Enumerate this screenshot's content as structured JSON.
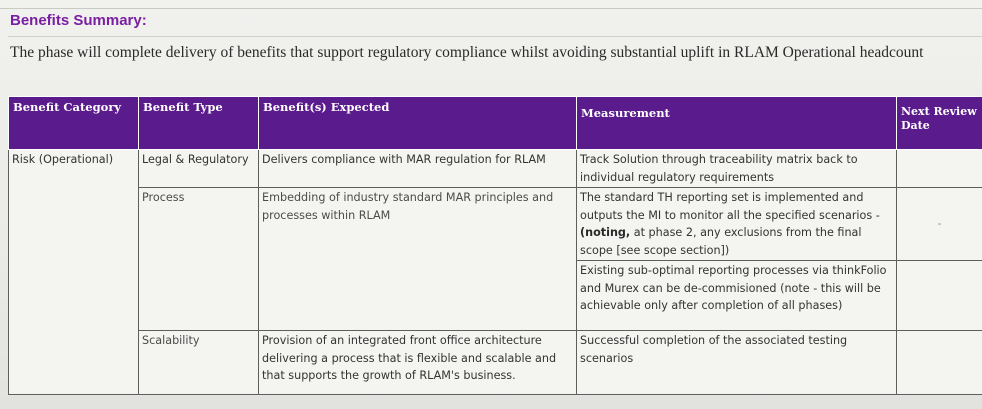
{
  "section": {
    "title": "Benefits Summary:",
    "intro": "The phase will complete delivery of benefits that support regulatory compliance whilst avoiding substantial uplift in RLAM Operational headcount"
  },
  "table": {
    "headers": {
      "category": "Benefit Category",
      "type": "Benefit Type",
      "expected": "Benefit(s) Expected",
      "measurement": "Measurement",
      "review": "Next Review Date"
    },
    "category": "Risk (Operational)",
    "rows": [
      {
        "type": "Legal & Regulatory",
        "expected": "Delivers compliance with MAR regulation for RLAM",
        "measurement": "Track Solution through traceability matrix back to individual regulatory requirements",
        "review": ""
      },
      {
        "type": "Process",
        "expected": "Embedding of industry standard MAR principles and processes within RLAM",
        "measurement_a": "The standard TH reporting set is implemented and outputs the MI to monitor all the specified scenarios - ",
        "measurement_a_bold": "(noting,",
        "measurement_a_tail": " at phase 2, any exclusions from the final scope [see scope section])",
        "measurement_b": "Existing sub-optimal reporting processes via thinkFolio and Murex can be de-commisioned (note - this will be achievable only after completion of all phases)",
        "review": "-"
      },
      {
        "type": "Scalability",
        "expected": "Provision of an integrated front office architecture delivering a process that is flexible and scalable and that supports the growth of RLAM's business.",
        "measurement": "Successful completion of the associated testing scenarios",
        "review": ""
      }
    ]
  }
}
